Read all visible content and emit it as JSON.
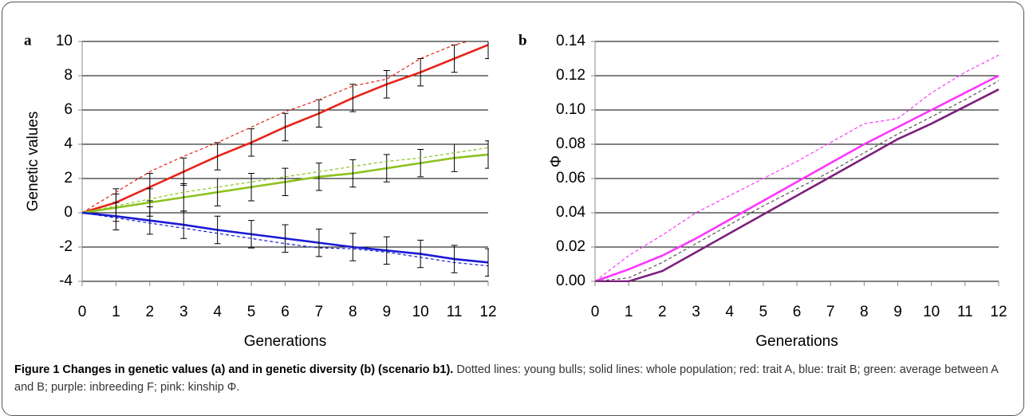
{
  "chart_data": [
    {
      "type": "line",
      "panel": "a",
      "y_label": "Genetic values",
      "x_label": "Generations",
      "x": [
        0,
        1,
        2,
        3,
        4,
        5,
        6,
        7,
        8,
        9,
        10,
        11,
        12
      ],
      "xlim": [
        0,
        12
      ],
      "xticks": [
        0,
        1,
        2,
        3,
        4,
        5,
        6,
        7,
        8,
        9,
        10,
        11,
        12
      ],
      "ylim": [
        -4,
        10
      ],
      "yticks": [
        -4,
        -2,
        0,
        2,
        4,
        6,
        8,
        10
      ],
      "grid": true,
      "series": [
        {
          "color": "#e8231a",
          "dashed": false,
          "values": [
            0,
            0.6,
            1.5,
            2.4,
            3.3,
            4.1,
            5.0,
            5.8,
            6.7,
            7.5,
            8.2,
            9.0,
            9.8
          ],
          "errors": [
            null,
            0.8,
            0.8,
            0.8,
            0.8,
            0.8,
            0.8,
            0.8,
            0.8,
            0.8,
            0.8,
            0.8,
            0.8
          ]
        },
        {
          "color": "#e8231a",
          "dashed": true,
          "values": [
            0,
            1.2,
            2.4,
            3.3,
            4.1,
            5.0,
            5.9,
            6.6,
            7.4,
            7.8,
            9.0,
            9.8,
            10.3
          ]
        },
        {
          "color": "#8cc21e",
          "dashed": false,
          "values": [
            0,
            0.3,
            0.6,
            0.9,
            1.2,
            1.5,
            1.8,
            2.1,
            2.3,
            2.6,
            2.9,
            3.2,
            3.4
          ],
          "errors": [
            null,
            0.8,
            0.8,
            0.8,
            0.8,
            0.8,
            0.8,
            0.8,
            0.8,
            0.8,
            0.8,
            0.8,
            0.8
          ]
        },
        {
          "color": "#8cc21e",
          "dashed": true,
          "values": [
            0,
            0.4,
            0.8,
            1.2,
            1.5,
            1.8,
            2.1,
            2.4,
            2.7,
            3.0,
            3.2,
            3.5,
            3.8
          ]
        },
        {
          "color": "#1a1ad6",
          "dashed": false,
          "values": [
            0,
            -0.2,
            -0.45,
            -0.7,
            -1.0,
            -1.25,
            -1.5,
            -1.75,
            -2.0,
            -2.2,
            -2.4,
            -2.7,
            -2.9
          ],
          "errors": [
            null,
            0.8,
            0.8,
            0.8,
            0.8,
            0.8,
            0.8,
            0.8,
            0.8,
            0.8,
            0.8,
            0.8,
            0.8
          ]
        },
        {
          "color": "#1a1ad6",
          "dashed": true,
          "values": [
            0,
            -0.3,
            -0.6,
            -0.9,
            -1.2,
            -1.5,
            -1.8,
            -2.05,
            -2.1,
            -2.3,
            -2.6,
            -2.9,
            -3.1
          ]
        }
      ]
    },
    {
      "type": "line",
      "panel": "b",
      "y_label": "Φ",
      "x_label": "Generations",
      "x": [
        0,
        1,
        2,
        3,
        4,
        5,
        6,
        7,
        8,
        9,
        10,
        11,
        12
      ],
      "xlim": [
        0,
        12
      ],
      "xticks": [
        0,
        1,
        2,
        3,
        4,
        5,
        6,
        7,
        8,
        9,
        10,
        11,
        12
      ],
      "ylim": [
        0,
        0.14
      ],
      "yticks": [
        {
          "value": 0,
          "label": "0.00"
        },
        {
          "value": 0.02,
          "label": "0.02"
        },
        {
          "value": 0.04,
          "label": "0.04"
        },
        {
          "value": 0.06,
          "label": "0.06"
        },
        {
          "value": 0.08,
          "label": "0.08"
        },
        {
          "value": 0.1,
          "label": "0.10"
        },
        {
          "value": 0.12,
          "label": "0.12"
        },
        {
          "value": 0.14,
          "label": "0.14"
        }
      ],
      "grid": true,
      "series": [
        {
          "color": "#ff33ff",
          "dashed": false,
          "values": [
            0,
            0.007,
            0.015,
            0.025,
            0.036,
            0.047,
            0.058,
            0.069,
            0.08,
            0.09,
            0.1,
            0.11,
            0.12
          ]
        },
        {
          "color": "#ff33ff",
          "dashed": true,
          "values": [
            0,
            0.015,
            0.027,
            0.04,
            0.05,
            0.06,
            0.07,
            0.081,
            0.092,
            0.095,
            0.11,
            0.122,
            0.132
          ]
        },
        {
          "color": "#7b1f7b",
          "dashed": false,
          "values": [
            0,
            0,
            0.006,
            0.017,
            0.028,
            0.039,
            0.05,
            0.061,
            0.072,
            0.083,
            0.092,
            0.102,
            0.112
          ]
        },
        {
          "color": "#555555",
          "dashed": true,
          "values": [
            0,
            0.002,
            0.011,
            0.022,
            0.033,
            0.044,
            0.054,
            0.064,
            0.075,
            0.086,
            0.096,
            0.106,
            0.117
          ]
        }
      ]
    }
  ],
  "caption": {
    "title": "Figure 1 Changes in genetic values (a) and in genetic diversity (b) (scenario b1).",
    "text": "Dotted lines: young bulls; solid lines: whole population; red: trait A, blue: trait B; green: average between A and B; purple: inbreeding F; pink: kinship Φ."
  }
}
